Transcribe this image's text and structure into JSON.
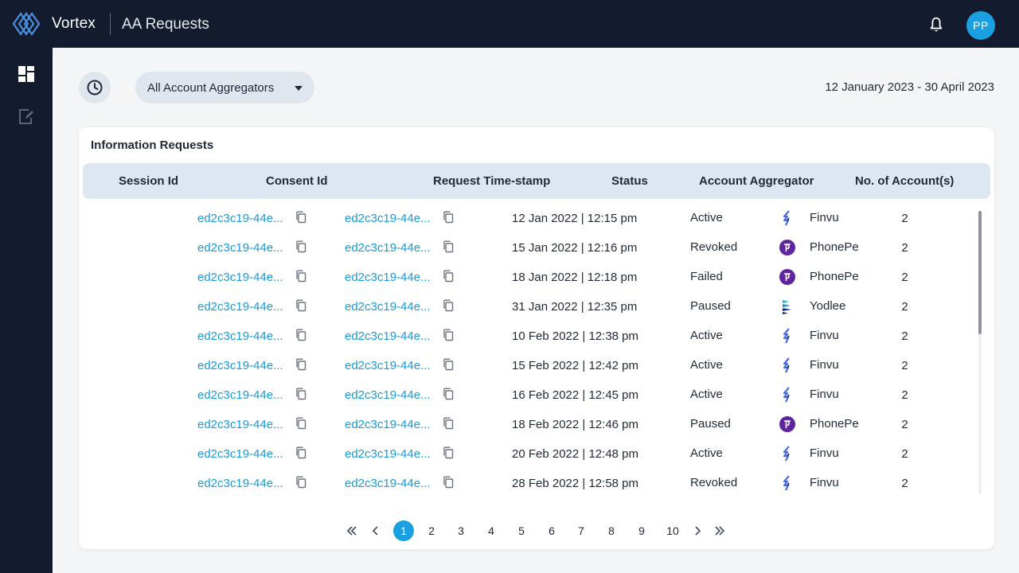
{
  "app": {
    "brand": "Vortex",
    "page_title": "AA Requests",
    "user_initials": "PP"
  },
  "icons": {
    "logo": "vortex-diamond-logo",
    "bell": "bell-icon",
    "dashboard": "dashboard-icon",
    "edit_doc": "edit-document-icon",
    "history": "clock-icon",
    "copy": "copy-icon"
  },
  "filters": {
    "aggregator_select": "All Account Aggregators",
    "date_range": "12 January 2023 - 30 April 2023"
  },
  "table": {
    "title": "Information Requests",
    "columns": [
      "Session Id",
      "Consent Id",
      "Request Time-stamp",
      "Status",
      "Account Aggregator",
      "No. of Account(s)"
    ],
    "rows": [
      {
        "session": "ed2c3c19-44e...",
        "consent": "ed2c3c19-44e...",
        "timestamp": "12 Jan 2022 | 12:15 pm",
        "status": "Active",
        "aggregator": "Finvu",
        "accounts": "2"
      },
      {
        "session": "ed2c3c19-44e...",
        "consent": "ed2c3c19-44e...",
        "timestamp": "15 Jan 2022 | 12:16 pm",
        "status": "Revoked",
        "aggregator": "PhonePe",
        "accounts": "2"
      },
      {
        "session": "ed2c3c19-44e...",
        "consent": "ed2c3c19-44e...",
        "timestamp": "18 Jan 2022 | 12:18 pm",
        "status": "Failed",
        "aggregator": "PhonePe",
        "accounts": "2"
      },
      {
        "session": "ed2c3c19-44e...",
        "consent": "ed2c3c19-44e...",
        "timestamp": "31 Jan 2022 | 12:35 pm",
        "status": "Paused",
        "aggregator": "Yodlee",
        "accounts": "2"
      },
      {
        "session": "ed2c3c19-44e...",
        "consent": "ed2c3c19-44e...",
        "timestamp": "10 Feb 2022 | 12:38 pm",
        "status": "Active",
        "aggregator": "Finvu",
        "accounts": "2"
      },
      {
        "session": "ed2c3c19-44e...",
        "consent": "ed2c3c19-44e...",
        "timestamp": "15 Feb 2022 | 12:42 pm",
        "status": "Active",
        "aggregator": "Finvu",
        "accounts": "2"
      },
      {
        "session": "ed2c3c19-44e...",
        "consent": "ed2c3c19-44e...",
        "timestamp": "16 Feb 2022 | 12:45 pm",
        "status": "Active",
        "aggregator": "Finvu",
        "accounts": "2"
      },
      {
        "session": "ed2c3c19-44e...",
        "consent": "ed2c3c19-44e...",
        "timestamp": "18 Feb 2022 | 12:46 pm",
        "status": "Paused",
        "aggregator": "PhonePe",
        "accounts": "2"
      },
      {
        "session": "ed2c3c19-44e...",
        "consent": "ed2c3c19-44e...",
        "timestamp": "20 Feb 2022 | 12:48 pm",
        "status": "Active",
        "aggregator": "Finvu",
        "accounts": "2"
      },
      {
        "session": "ed2c3c19-44e...",
        "consent": "ed2c3c19-44e...",
        "timestamp": "28 Feb 2022 | 12:58 pm",
        "status": "Revoked",
        "aggregator": "Finvu",
        "accounts": "2"
      }
    ]
  },
  "pagination": {
    "pages": [
      "1",
      "2",
      "3",
      "4",
      "5",
      "6",
      "7",
      "8",
      "9",
      "10"
    ],
    "current": "1"
  },
  "colors": {
    "nav_bg": "#131b2e",
    "accent": "#1a9fe0",
    "link": "#1a9ad6",
    "header_row": "#dce7f1",
    "phonepe": "#5f259f"
  }
}
